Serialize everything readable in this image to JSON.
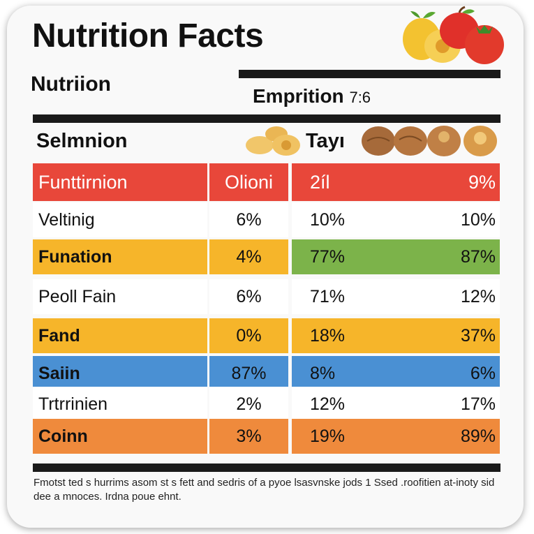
{
  "title": "Nutrition Facts",
  "subtitle_left": "Nutriion",
  "subtitle_right": "Emprition",
  "subtitle_right_value": "7:6",
  "section_left": "Selmnion",
  "section_right": "Tayı",
  "header": {
    "c1": "Funttirnion",
    "c2": "Olioni",
    "c3": "2íl",
    "c4": "9%",
    "color_left": "#e8473a",
    "color_right": "#e8473a"
  },
  "rows": [
    {
      "c1": "Veltinig",
      "c2": "6%",
      "c3": "10%",
      "c4": "10%",
      "color_left": "#ffffff",
      "color_mid": "#ffffff",
      "color_right": "#ffffff",
      "bold": false
    },
    {
      "c1": "Funation",
      "c2": "4%",
      "c3": "77%",
      "c4": "87%",
      "color_left": "#f6b52a",
      "color_mid": "#f6b52a",
      "color_right": "#7cb34a",
      "bold": true
    },
    {
      "c1": "Peoll Fain",
      "c2": "6%",
      "c3": "71%",
      "c4": "12%",
      "color_left": "#ffffff",
      "color_mid": "#ffffff",
      "color_right": "#ffffff",
      "bold": false
    },
    {
      "c1": "Fand",
      "c2": "0%",
      "c3": "18%",
      "c4": "37%",
      "color_left": "#f6b52a",
      "color_mid": "#f6b52a",
      "color_right": "#f6b52a",
      "bold": true
    },
    {
      "c1": "Saiin",
      "c2": "87%",
      "c3": "8%",
      "c4": "6%",
      "color_left": "#4a90d3",
      "color_mid": "#4a90d3",
      "color_right": "#4a90d3",
      "bold": true
    },
    {
      "c1": "Trtrrinien",
      "c2": "2%",
      "c3": "12%",
      "c4": "17%",
      "color_left": "#ffffff",
      "color_mid": "#ffffff",
      "color_right": "#ffffff",
      "bold": false
    },
    {
      "c1": "Coinn",
      "c2": "3%",
      "c3": "19%",
      "c4": "89%",
      "color_left": "#ef8a3c",
      "color_mid": "#ef8a3c",
      "color_right": "#ef8a3c",
      "bold": true
    }
  ],
  "footnote": "Fmotst ted s hurrims asom st s fett and sedris of a pyoe lsasvnske jods 1 Ssed .roofitien at-inoty sid dee a mnoces. Irdna poue ehnt.",
  "icons": {
    "fruit": "fruit-icon",
    "nuts": "nuts-icon"
  }
}
